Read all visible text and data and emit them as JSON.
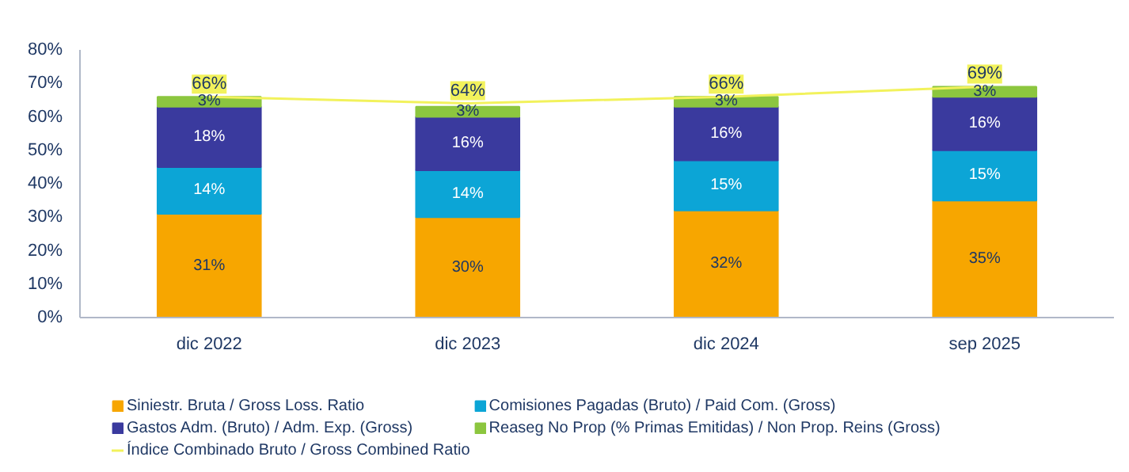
{
  "chart_data": {
    "type": "bar",
    "stacked": true,
    "categories": [
      "dic 2022",
      "dic 2023",
      "dic 2024",
      "sep 2025"
    ],
    "series": [
      {
        "name": "Siniestr. Bruta / Gross Loss. Ratio",
        "color": "#f7a600",
        "values": [
          31,
          30,
          32,
          35
        ],
        "value_labels": [
          "31%",
          "30%",
          "32%",
          "35%"
        ]
      },
      {
        "name": "Comisiones Pagadas (Bruto) / Paid Com. (Gross)",
        "color": "#0ca5d6",
        "values": [
          14,
          14,
          15,
          15
        ],
        "value_labels": [
          "14%",
          "14%",
          "15%",
          "15%"
        ]
      },
      {
        "name": "Gastos Adm. (Bruto) / Adm. Exp. (Gross)",
        "color": "#3a3a9e",
        "values": [
          18,
          16,
          16,
          16
        ],
        "value_labels": [
          "18%",
          "16%",
          "16%",
          "16%"
        ]
      },
      {
        "name": "Reaseg No Prop (% Primas Emitidas) / Non Prop. Reins (Gross)",
        "color": "#8cc63f",
        "values": [
          3,
          3,
          3,
          3
        ],
        "value_labels": [
          "3%",
          "3%",
          "3%",
          "3%"
        ]
      },
      {
        "name": "Índice Combinado Bruto / Gross Combined Ratio",
        "type": "line",
        "color": "#f2f25c",
        "values": [
          66,
          64,
          66,
          69
        ],
        "value_labels": [
          "66%",
          "64%",
          "66%",
          "69%"
        ]
      }
    ],
    "ylim": [
      0,
      80
    ],
    "yticks": [
      {
        "value": 0,
        "label": "0%"
      },
      {
        "value": 10,
        "label": "10%"
      },
      {
        "value": 20,
        "label": "20%"
      },
      {
        "value": 30,
        "label": "30%"
      },
      {
        "value": 40,
        "label": "40%"
      },
      {
        "value": 50,
        "label": "50%"
      },
      {
        "value": 60,
        "label": "60%"
      },
      {
        "value": 70,
        "label": "70%"
      },
      {
        "value": 80,
        "label": "80%"
      }
    ],
    "grid": false,
    "legend": "bottom",
    "marker": "none",
    "line_style": "solid"
  }
}
